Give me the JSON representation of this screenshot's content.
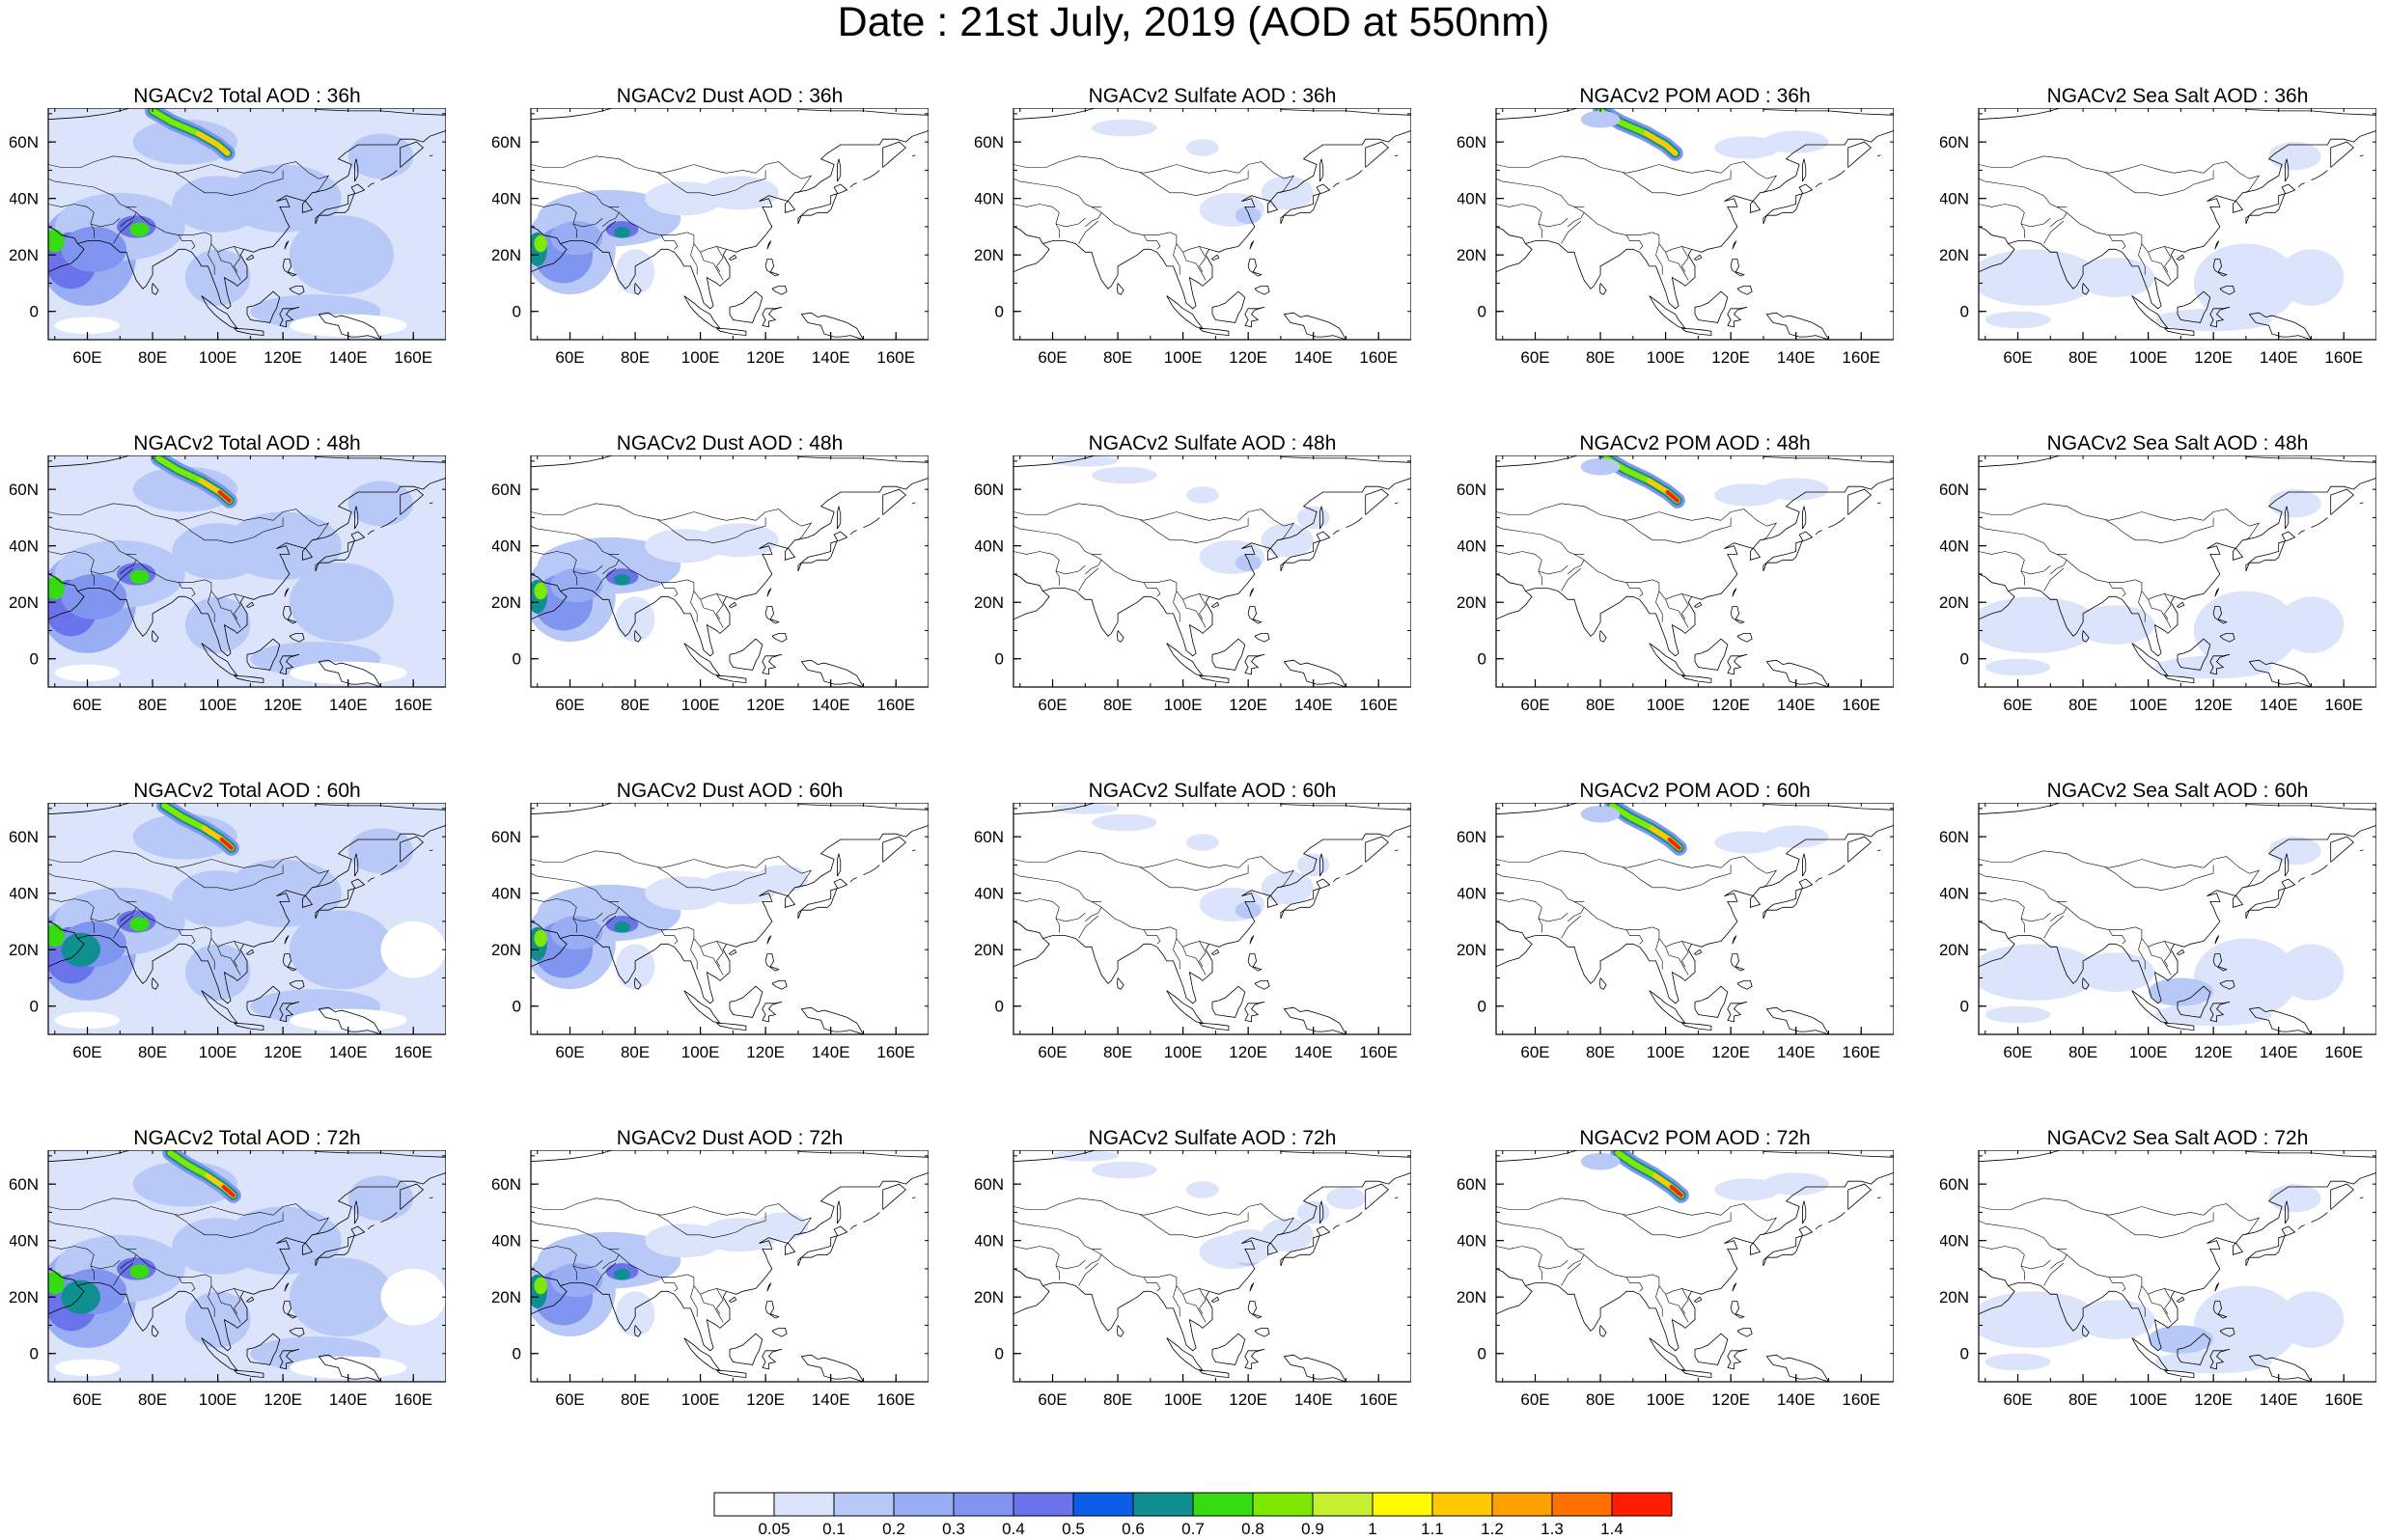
{
  "title": "Date : 21st July, 2019 (AOD at 550nm)",
  "map": {
    "lon_ticks": [
      "60E",
      "80E",
      "100E",
      "120E",
      "140E",
      "160E"
    ],
    "lat_ticks": [
      "60N",
      "40N",
      "20N",
      "0"
    ]
  },
  "rows": [
    {
      "hour": "36h",
      "titles": [
        "NGACv2 Total AOD : 36h",
        "NGACv2 Dust AOD : 36h",
        "NGACv2 Sulfate AOD : 36h",
        "NGACv2 POM AOD : 36h",
        "NGACv2 Sea Salt AOD : 36h"
      ]
    },
    {
      "hour": "48h",
      "titles": [
        "NGACv2 Total AOD : 48h",
        "NGACv2 Dust AOD : 48h",
        "NGACv2 Sulfate AOD : 48h",
        "NGACv2 POM AOD : 48h",
        "NGACv2 Sea Salt AOD : 48h"
      ]
    },
    {
      "hour": "60h",
      "titles": [
        "NGACv2 Total AOD : 60h",
        "NGACv2 Dust AOD : 60h",
        "NGACv2 Sulfate AOD : 60h",
        "NGACv2 POM AOD : 60h",
        "NGACv2 Sea Salt AOD : 60h"
      ]
    },
    {
      "hour": "72h",
      "titles": [
        "NGACv2 Total AOD : 72h",
        "NGACv2 Dust AOD : 72h",
        "NGACv2 Sulfate AOD : 72h",
        "NGACv2 POM AOD : 72h",
        "NGACv2 Sea Salt  AOD : 72h"
      ]
    }
  ],
  "colorbar": {
    "labels": [
      "0.05",
      "0.1",
      "0.2",
      "0.3",
      "0.4",
      "0.5",
      "0.6",
      "0.7",
      "0.8",
      "0.9",
      "1",
      "1.1",
      "1.2",
      "1.3",
      "1.4"
    ],
    "colors": [
      "#ffffff",
      "#dbe4fb",
      "#b9c9f7",
      "#98adf4",
      "#7f95f0",
      "#6a73ea",
      "#0a5fe6",
      "#0f8f8f",
      "#34dc10",
      "#7fe800",
      "#c6f030",
      "#fffa00",
      "#ffc800",
      "#ffa000",
      "#ff7000",
      "#ff1e00"
    ]
  }
}
